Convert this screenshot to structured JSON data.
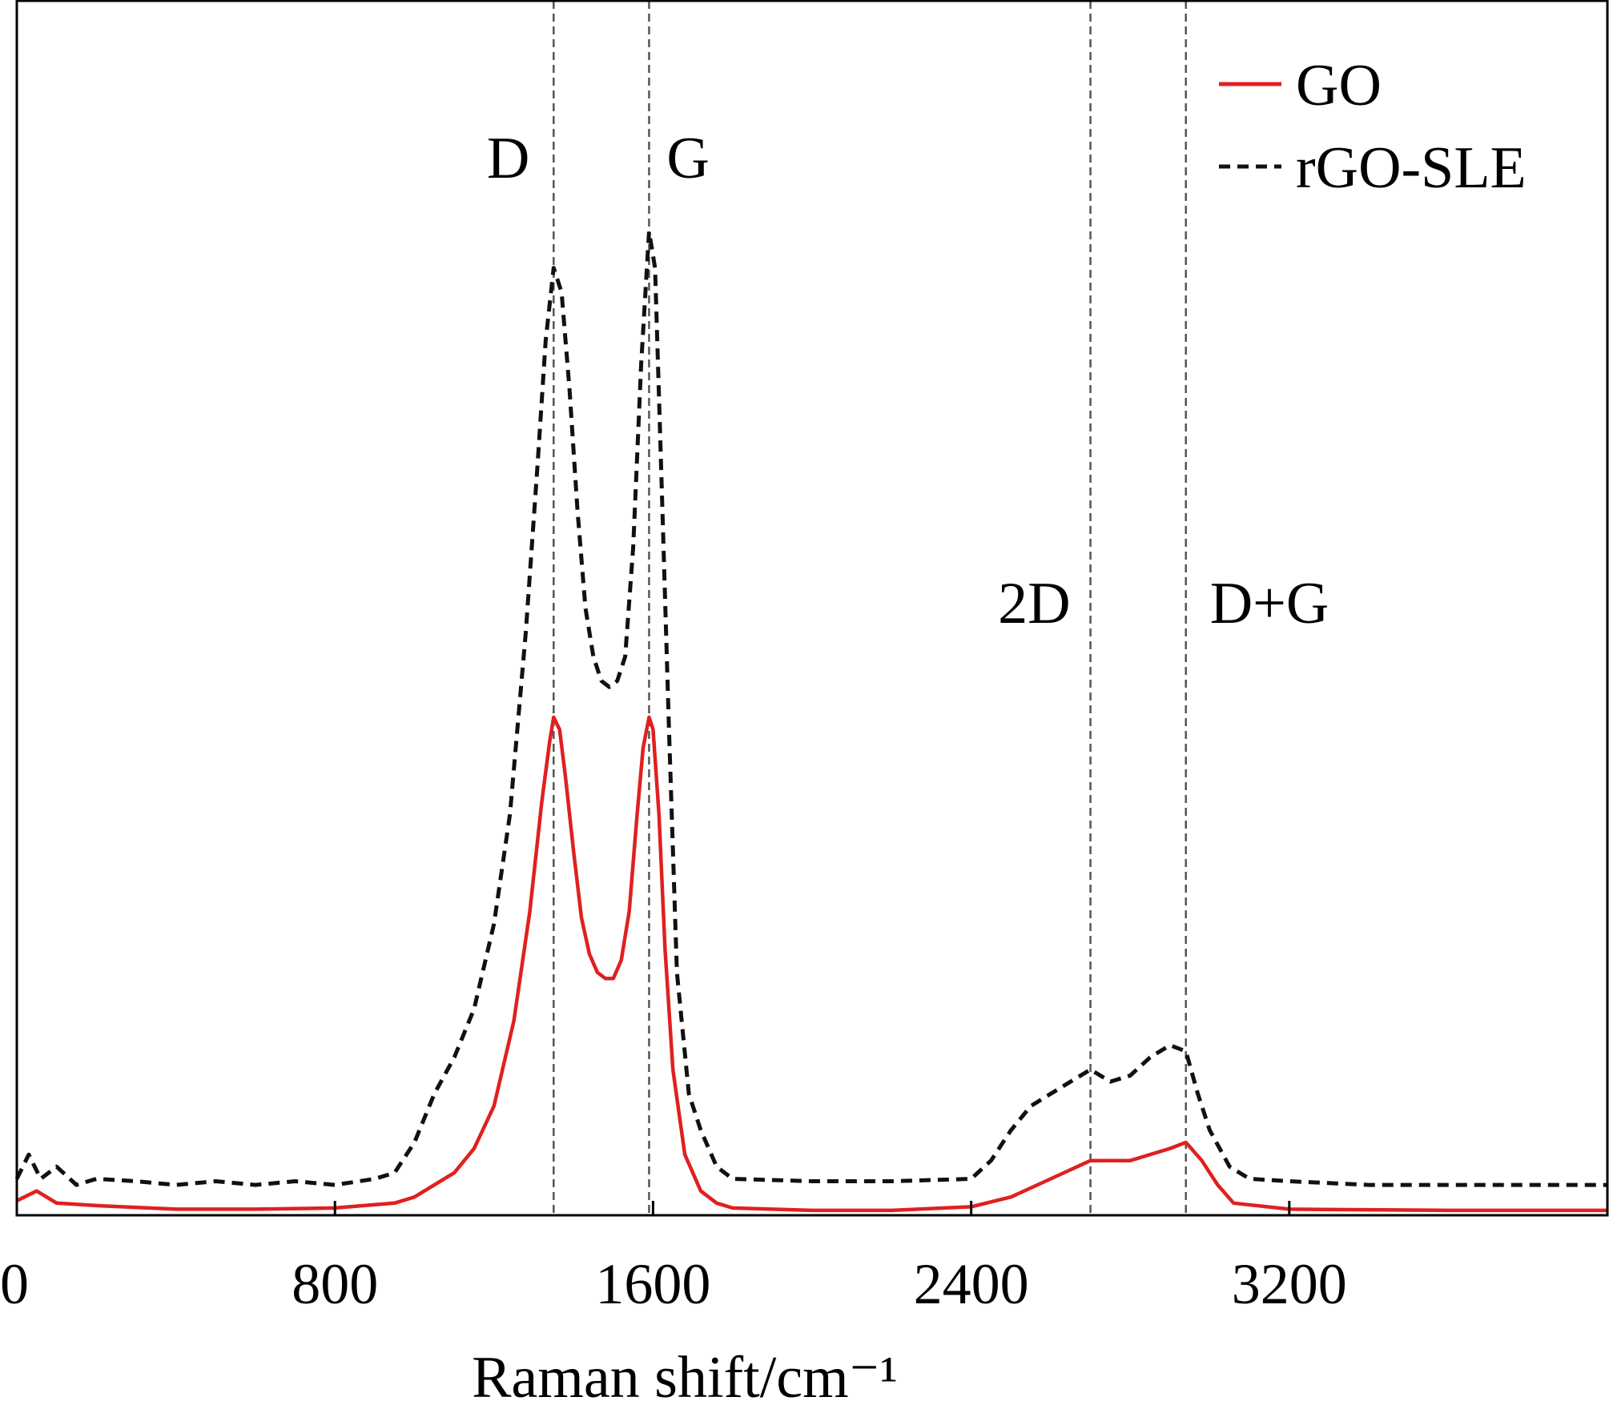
{
  "chart_data": {
    "type": "line",
    "title": "",
    "xlabel": "Raman shift/cm⁻¹",
    "ylabel": "",
    "xlim": [
      0,
      4000
    ],
    "ylim": [
      0,
      1
    ],
    "x_ticks": [
      0,
      800,
      1600,
      2400,
      3200
    ],
    "x_tick_labels": [
      "0",
      "800",
      "1600",
      "2400",
      "3200"
    ],
    "grid": false,
    "legend_position": "top-right",
    "reference_lines": [
      {
        "label": "D",
        "x": 1350
      },
      {
        "label": "G",
        "x": 1590
      },
      {
        "label": "2D",
        "x": 2700
      },
      {
        "label": "D+G",
        "x": 2940
      }
    ],
    "series": [
      {
        "name": "GO",
        "color": "#e02020",
        "style": "solid",
        "x": [
          0,
          50,
          100,
          200,
          400,
          600,
          800,
          950,
          1000,
          1050,
          1100,
          1150,
          1200,
          1250,
          1290,
          1320,
          1340,
          1350,
          1365,
          1380,
          1400,
          1420,
          1440,
          1460,
          1480,
          1500,
          1520,
          1540,
          1560,
          1575,
          1590,
          1600,
          1615,
          1630,
          1650,
          1680,
          1720,
          1760,
          1800,
          2000,
          2200,
          2400,
          2500,
          2600,
          2700,
          2800,
          2900,
          2940,
          2980,
          3020,
          3060,
          3200,
          3600,
          4000
        ],
        "values": [
          0.012,
          0.02,
          0.01,
          0.008,
          0.005,
          0.005,
          0.006,
          0.01,
          0.015,
          0.025,
          0.035,
          0.055,
          0.09,
          0.16,
          0.25,
          0.34,
          0.39,
          0.41,
          0.4,
          0.36,
          0.3,
          0.245,
          0.215,
          0.2,
          0.195,
          0.195,
          0.21,
          0.25,
          0.33,
          0.385,
          0.41,
          0.4,
          0.33,
          0.22,
          0.12,
          0.05,
          0.02,
          0.01,
          0.006,
          0.004,
          0.004,
          0.007,
          0.015,
          0.03,
          0.045,
          0.045,
          0.055,
          0.06,
          0.045,
          0.025,
          0.01,
          0.005,
          0.004,
          0.004
        ]
      },
      {
        "name": "rGO-SLE",
        "color": "#111111",
        "style": "dashed",
        "x": [
          0,
          30,
          60,
          100,
          150,
          200,
          300,
          400,
          500,
          600,
          700,
          800,
          900,
          950,
          1000,
          1050,
          1100,
          1150,
          1200,
          1240,
          1280,
          1310,
          1330,
          1350,
          1370,
          1390,
          1410,
          1430,
          1450,
          1470,
          1490,
          1510,
          1530,
          1550,
          1570,
          1590,
          1605,
          1620,
          1640,
          1660,
          1690,
          1720,
          1760,
          1800,
          2000,
          2200,
          2400,
          2450,
          2500,
          2550,
          2600,
          2650,
          2700,
          2750,
          2800,
          2850,
          2900,
          2940,
          2970,
          3000,
          3050,
          3100,
          3200,
          3400,
          3600,
          3800,
          4000
        ],
        "values": [
          0.03,
          0.05,
          0.03,
          0.04,
          0.025,
          0.03,
          0.028,
          0.025,
          0.028,
          0.025,
          0.028,
          0.025,
          0.03,
          0.035,
          0.06,
          0.1,
          0.13,
          0.17,
          0.24,
          0.33,
          0.48,
          0.62,
          0.72,
          0.78,
          0.76,
          0.68,
          0.58,
          0.5,
          0.46,
          0.44,
          0.435,
          0.44,
          0.46,
          0.55,
          0.7,
          0.81,
          0.78,
          0.62,
          0.4,
          0.2,
          0.1,
          0.07,
          0.04,
          0.03,
          0.028,
          0.028,
          0.03,
          0.045,
          0.07,
          0.09,
          0.1,
          0.11,
          0.12,
          0.11,
          0.115,
          0.13,
          0.14,
          0.135,
          0.1,
          0.07,
          0.04,
          0.03,
          0.028,
          0.025,
          0.025,
          0.025,
          0.025
        ]
      }
    ]
  }
}
